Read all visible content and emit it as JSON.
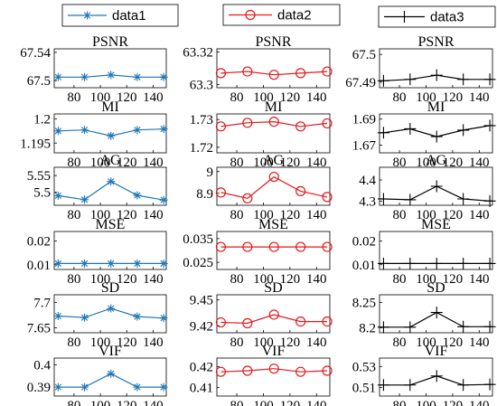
{
  "chart_data": {
    "type": "line",
    "x": [
      68,
      88,
      108,
      128,
      148
    ],
    "xticks": [
      80,
      100,
      120,
      140
    ],
    "xlim": [
      65,
      150
    ],
    "legend": [
      {
        "name": "data1",
        "color": "#1f77b4",
        "marker": "star"
      },
      {
        "name": "data2",
        "color": "#e31a1c",
        "marker": "circle"
      },
      {
        "name": "data3",
        "color": "#000000",
        "marker": "plus"
      }
    ],
    "rows": [
      {
        "metric": "PSNR",
        "panels": [
          {
            "series": "data1",
            "yticks": [
              "67.54",
              "67.5"
            ],
            "ylim": [
              67.49,
              67.545
            ],
            "values": [
              67.505,
              67.505,
              67.508,
              67.505,
              67.505
            ]
          },
          {
            "series": "data2",
            "yticks": [
              "63.32",
              "63.3"
            ],
            "ylim": [
              63.298,
              63.322
            ],
            "values": [
              63.307,
              63.308,
              63.306,
              63.307,
              63.308
            ]
          },
          {
            "series": "data3",
            "yticks": [
              "67.5",
              "67.49"
            ],
            "ylim": [
              67.488,
              67.502
            ],
            "values": [
              67.4905,
              67.491,
              67.4925,
              67.491,
              67.491
            ]
          }
        ]
      },
      {
        "metric": "MI",
        "panels": [
          {
            "series": "data1",
            "yticks": [
              "1.2",
              "1.195"
            ],
            "ylim": [
              1.193,
              1.201
            ],
            "values": [
              1.1975,
              1.1977,
              1.1965,
              1.1977,
              1.1979
            ]
          },
          {
            "series": "data2",
            "yticks": [
              "1.73",
              "1.72"
            ],
            "ylim": [
              1.718,
              1.732
            ],
            "values": [
              1.7275,
              1.7288,
              1.7292,
              1.7275,
              1.7286
            ]
          },
          {
            "series": "data3",
            "yticks": [
              "1.69",
              "1.67"
            ],
            "ylim": [
              1.664,
              1.694
            ],
            "values": [
              1.6795,
              1.6825,
              1.6765,
              1.6815,
              1.685
            ]
          }
        ]
      },
      {
        "metric": "AG",
        "panels": [
          {
            "series": "data1",
            "yticks": [
              "5.55",
              "5.5"
            ],
            "ylim": [
              5.46,
              5.575
            ],
            "values": [
              5.489,
              5.477,
              5.532,
              5.49,
              5.476
            ]
          },
          {
            "series": "data2",
            "yticks": [
              "9",
              "8.9"
            ],
            "ylim": [
              8.845,
              9.02
            ],
            "values": [
              8.904,
              8.877,
              8.976,
              8.91,
              8.883
            ]
          },
          {
            "series": "data3",
            "yticks": [
              "4.4",
              "4.3"
            ],
            "ylim": [
              4.28,
              4.46
            ],
            "values": [
              4.31,
              4.306,
              4.37,
              4.31,
              4.3
            ]
          }
        ]
      },
      {
        "metric": "MSE",
        "panels": [
          {
            "series": "data1",
            "yticks": [
              "0.02",
              "0.01"
            ],
            "ylim": [
              0.008,
              0.024
            ],
            "values": [
              0.0105,
              0.0105,
              0.0105,
              0.0105,
              0.0105
            ]
          },
          {
            "series": "data2",
            "yticks": [
              "0.035",
              "0.025"
            ],
            "ylim": [
              0.022,
              0.038
            ],
            "values": [
              0.0315,
              0.0315,
              0.0315,
              0.0315,
              0.0315
            ]
          },
          {
            "series": "data3",
            "yticks": [
              "0.02",
              "0.01"
            ],
            "ylim": [
              0.008,
              0.024
            ],
            "values": [
              0.0105,
              0.0105,
              0.0105,
              0.0105,
              0.0105
            ]
          }
        ]
      },
      {
        "metric": "SD",
        "panels": [
          {
            "series": "data1",
            "yticks": [
              "7.7",
              "7.65"
            ],
            "ylim": [
              7.64,
              7.715
            ],
            "values": [
              7.673,
              7.67,
              7.688,
              7.672,
              7.669
            ]
          },
          {
            "series": "data2",
            "yticks": [
              "9.45",
              "9.42"
            ],
            "ylim": [
              9.412,
              9.456
            ],
            "values": [
              9.424,
              9.423,
              9.433,
              9.425,
              9.425
            ]
          },
          {
            "series": "data3",
            "yticks": [
              "8.25",
              "8.2"
            ],
            "ylim": [
              8.19,
              8.265
            ],
            "values": [
              8.201,
              8.201,
              8.23,
              8.202,
              8.202
            ]
          }
        ]
      },
      {
        "metric": "VIF",
        "panels": [
          {
            "series": "data1",
            "yticks": [
              "0.4",
              "0.39"
            ],
            "ylim": [
              0.386,
              0.403
            ],
            "values": [
              0.39,
              0.39,
              0.396,
              0.39,
              0.39
            ]
          },
          {
            "series": "data2",
            "yticks": [
              "0.42",
              "0.41"
            ],
            "ylim": [
              0.406,
              0.424
            ],
            "values": [
              0.4175,
              0.418,
              0.419,
              0.4175,
              0.418
            ]
          },
          {
            "series": "data3",
            "yticks": [
              "0.53",
              "0.51"
            ],
            "ylim": [
              0.502,
              0.538
            ],
            "values": [
              0.5125,
              0.5125,
              0.521,
              0.5125,
              0.513
            ]
          }
        ]
      }
    ]
  }
}
